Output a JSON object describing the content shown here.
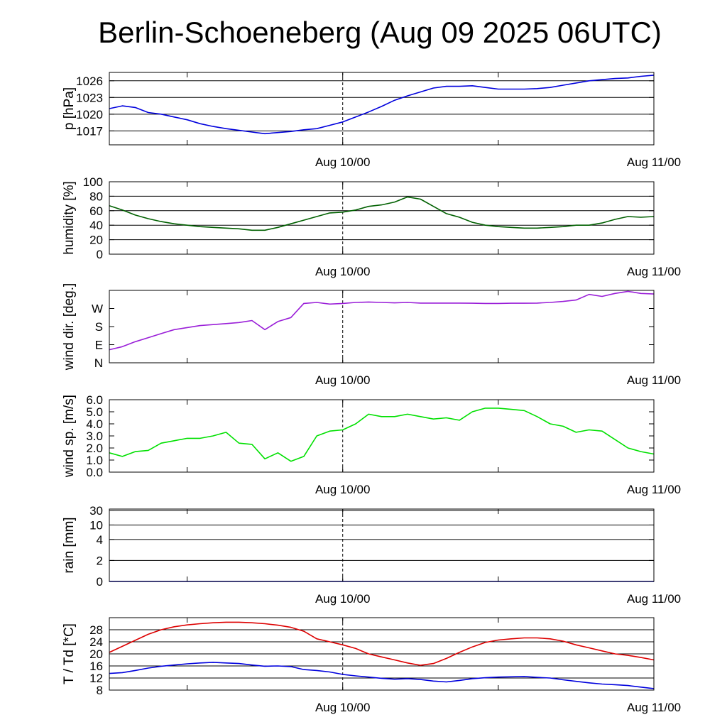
{
  "title": "Berlin-Schoeneberg (Aug 09 2025 06UTC)",
  "x_ticks": [
    "Aug 10/00",
    "Aug 11/00"
  ],
  "chart_data": [
    {
      "type": "line",
      "ylabel": "p [hPa]",
      "ylim": [
        1014.5,
        1027.5
      ],
      "y_ticks": [
        1017,
        1020,
        1023,
        1026
      ],
      "grid": true,
      "series": [
        {
          "color": "#0000dd",
          "x": [
            0,
            1,
            2,
            3,
            4,
            5,
            6,
            7,
            8,
            9,
            10,
            11,
            12,
            13,
            14,
            15,
            16,
            17,
            18,
            19,
            20,
            21,
            22,
            23,
            24,
            25,
            26,
            27,
            28,
            29,
            30,
            31,
            32,
            33,
            34,
            35,
            36,
            37,
            38,
            39,
            40,
            41,
            42
          ],
          "y": [
            1021.0,
            1021.5,
            1021.2,
            1020.3,
            1020.0,
            1019.5,
            1019.0,
            1018.3,
            1017.8,
            1017.4,
            1017.1,
            1016.8,
            1016.5,
            1016.7,
            1016.9,
            1017.2,
            1017.4,
            1018.0,
            1018.6,
            1019.5,
            1020.4,
            1021.4,
            1022.5,
            1023.3,
            1024.0,
            1024.7,
            1025.0,
            1025.0,
            1025.1,
            1024.8,
            1024.5,
            1024.5,
            1024.5,
            1024.6,
            1024.8,
            1025.2,
            1025.6,
            1026.0,
            1026.2,
            1026.4,
            1026.5,
            1026.8,
            1027.0
          ]
        }
      ]
    },
    {
      "type": "line",
      "ylabel": "humidity [%]",
      "ylim": [
        0,
        100
      ],
      "y_ticks": [
        0,
        20,
        40,
        60,
        80,
        100
      ],
      "grid": true,
      "series": [
        {
          "color": "#006000",
          "x": [
            0,
            1,
            2,
            3,
            4,
            5,
            6,
            7,
            8,
            9,
            10,
            11,
            12,
            13,
            14,
            15,
            16,
            17,
            18,
            19,
            20,
            21,
            22,
            23,
            24,
            25,
            26,
            27,
            28,
            29,
            30,
            31,
            32,
            33,
            34,
            35,
            36,
            37,
            38,
            39,
            40,
            41,
            42
          ],
          "y": [
            67,
            61,
            54,
            49,
            45,
            42,
            40,
            38,
            37,
            36,
            35,
            33,
            33,
            37,
            42,
            47,
            52,
            57,
            58,
            61,
            66,
            68,
            72,
            79,
            76,
            66,
            56,
            51,
            44,
            40,
            38,
            37,
            36,
            36,
            37,
            38,
            40,
            40,
            43,
            48,
            52,
            51,
            52
          ]
        }
      ]
    },
    {
      "type": "line",
      "ylabel": "wind dir. [deg.]",
      "ylim": [
        0,
        360
      ],
      "y_ticks": [
        0,
        90,
        180,
        270
      ],
      "y_tick_labels": [
        "N",
        "E",
        "S",
        "W"
      ],
      "grid": false,
      "series": [
        {
          "color": "#9a1fd8",
          "x": [
            0,
            1,
            2,
            3,
            4,
            5,
            6,
            7,
            8,
            9,
            10,
            11,
            12,
            13,
            14,
            15,
            16,
            17,
            18,
            19,
            20,
            21,
            22,
            23,
            24,
            25,
            26,
            27,
            28,
            29,
            30,
            31,
            32,
            33,
            34,
            35,
            36,
            37,
            38,
            39,
            40,
            41,
            42
          ],
          "y": [
            65,
            80,
            105,
            125,
            145,
            165,
            175,
            185,
            190,
            195,
            200,
            210,
            165,
            205,
            225,
            295,
            300,
            292,
            295,
            300,
            302,
            300,
            298,
            300,
            297,
            297,
            297,
            297,
            296,
            295,
            295,
            296,
            296,
            297,
            300,
            305,
            312,
            340,
            330,
            345,
            355,
            345,
            342
          ]
        }
      ]
    },
    {
      "type": "line",
      "ylabel": "wind sp. [m/s]",
      "ylim": [
        0,
        6
      ],
      "y_ticks": [
        0.0,
        1.0,
        2.0,
        3.0,
        4.0,
        5.0,
        6.0
      ],
      "y_tick_labels": [
        "0.0",
        "1.0",
        "2.0",
        "3.0",
        "4.0",
        "5.0",
        "6.0"
      ],
      "grid": false,
      "series": [
        {
          "color": "#00e000",
          "x": [
            0,
            1,
            2,
            3,
            4,
            5,
            6,
            7,
            8,
            9,
            10,
            11,
            12,
            13,
            14,
            15,
            16,
            17,
            18,
            19,
            20,
            21,
            22,
            23,
            24,
            25,
            26,
            27,
            28,
            29,
            30,
            31,
            32,
            33,
            34,
            35,
            36,
            37,
            38,
            39,
            40,
            41,
            42
          ],
          "y": [
            1.6,
            1.3,
            1.7,
            1.8,
            2.4,
            2.6,
            2.8,
            2.8,
            3.0,
            3.3,
            2.4,
            2.3,
            1.1,
            1.6,
            0.9,
            1.3,
            3.0,
            3.4,
            3.5,
            4.0,
            4.8,
            4.6,
            4.6,
            4.8,
            4.6,
            4.4,
            4.5,
            4.3,
            5.0,
            5.3,
            5.3,
            5.2,
            5.1,
            4.6,
            4.0,
            3.8,
            3.3,
            3.5,
            3.4,
            2.7,
            2.0,
            1.7,
            1.5
          ]
        }
      ]
    },
    {
      "type": "line",
      "ylabel": "rain [mm]",
      "y_ticks": [
        0,
        2,
        4,
        10,
        30
      ],
      "grid": true,
      "series": [
        {
          "color": "#0000dd",
          "x": [
            0,
            42
          ],
          "y": [
            0,
            0
          ]
        }
      ]
    },
    {
      "type": "line",
      "ylabel": "T / Td [*C]",
      "ylim": [
        8,
        32
      ],
      "y_ticks": [
        8,
        12,
        16,
        20,
        24,
        28
      ],
      "grid": true,
      "series": [
        {
          "color": "#dd0000",
          "x": [
            0,
            1,
            2,
            3,
            4,
            5,
            6,
            7,
            8,
            9,
            10,
            11,
            12,
            13,
            14,
            15,
            16,
            17,
            18,
            19,
            20,
            21,
            22,
            23,
            24,
            25,
            26,
            27,
            28,
            29,
            30,
            31,
            32,
            33,
            34,
            35,
            36,
            37,
            38,
            39,
            40,
            41,
            42
          ],
          "y": [
            20.5,
            22.5,
            24.5,
            26.5,
            28.0,
            29.0,
            29.6,
            30.0,
            30.3,
            30.5,
            30.5,
            30.3,
            30.0,
            29.5,
            28.8,
            27.5,
            25.0,
            24.0,
            23.0,
            21.8,
            20.0,
            19.0,
            18.0,
            17.0,
            16.2,
            16.8,
            18.5,
            20.5,
            22.3,
            23.8,
            24.6,
            25.0,
            25.3,
            25.3,
            25.0,
            24.2,
            23.0,
            22.0,
            21.0,
            20.0,
            19.5,
            18.8,
            18.0
          ]
        },
        {
          "color": "#0000dd",
          "x": [
            0,
            1,
            2,
            3,
            4,
            5,
            6,
            7,
            8,
            9,
            10,
            11,
            12,
            13,
            14,
            15,
            16,
            17,
            18,
            19,
            20,
            21,
            22,
            23,
            24,
            25,
            26,
            27,
            28,
            29,
            30,
            31,
            32,
            33,
            34,
            35,
            36,
            37,
            38,
            39,
            40,
            41,
            42
          ],
          "y": [
            13.5,
            13.8,
            14.5,
            15.3,
            15.9,
            16.3,
            16.7,
            17.0,
            17.2,
            17.0,
            16.8,
            16.3,
            15.9,
            16.0,
            15.8,
            14.8,
            14.5,
            14.0,
            13.2,
            12.7,
            12.3,
            11.9,
            11.6,
            11.8,
            11.5,
            11.0,
            10.7,
            11.2,
            11.8,
            12.1,
            12.3,
            12.4,
            12.5,
            12.2,
            12.0,
            11.4,
            10.9,
            10.4,
            10.0,
            9.8,
            9.5,
            9.0,
            8.5
          ]
        }
      ]
    }
  ]
}
